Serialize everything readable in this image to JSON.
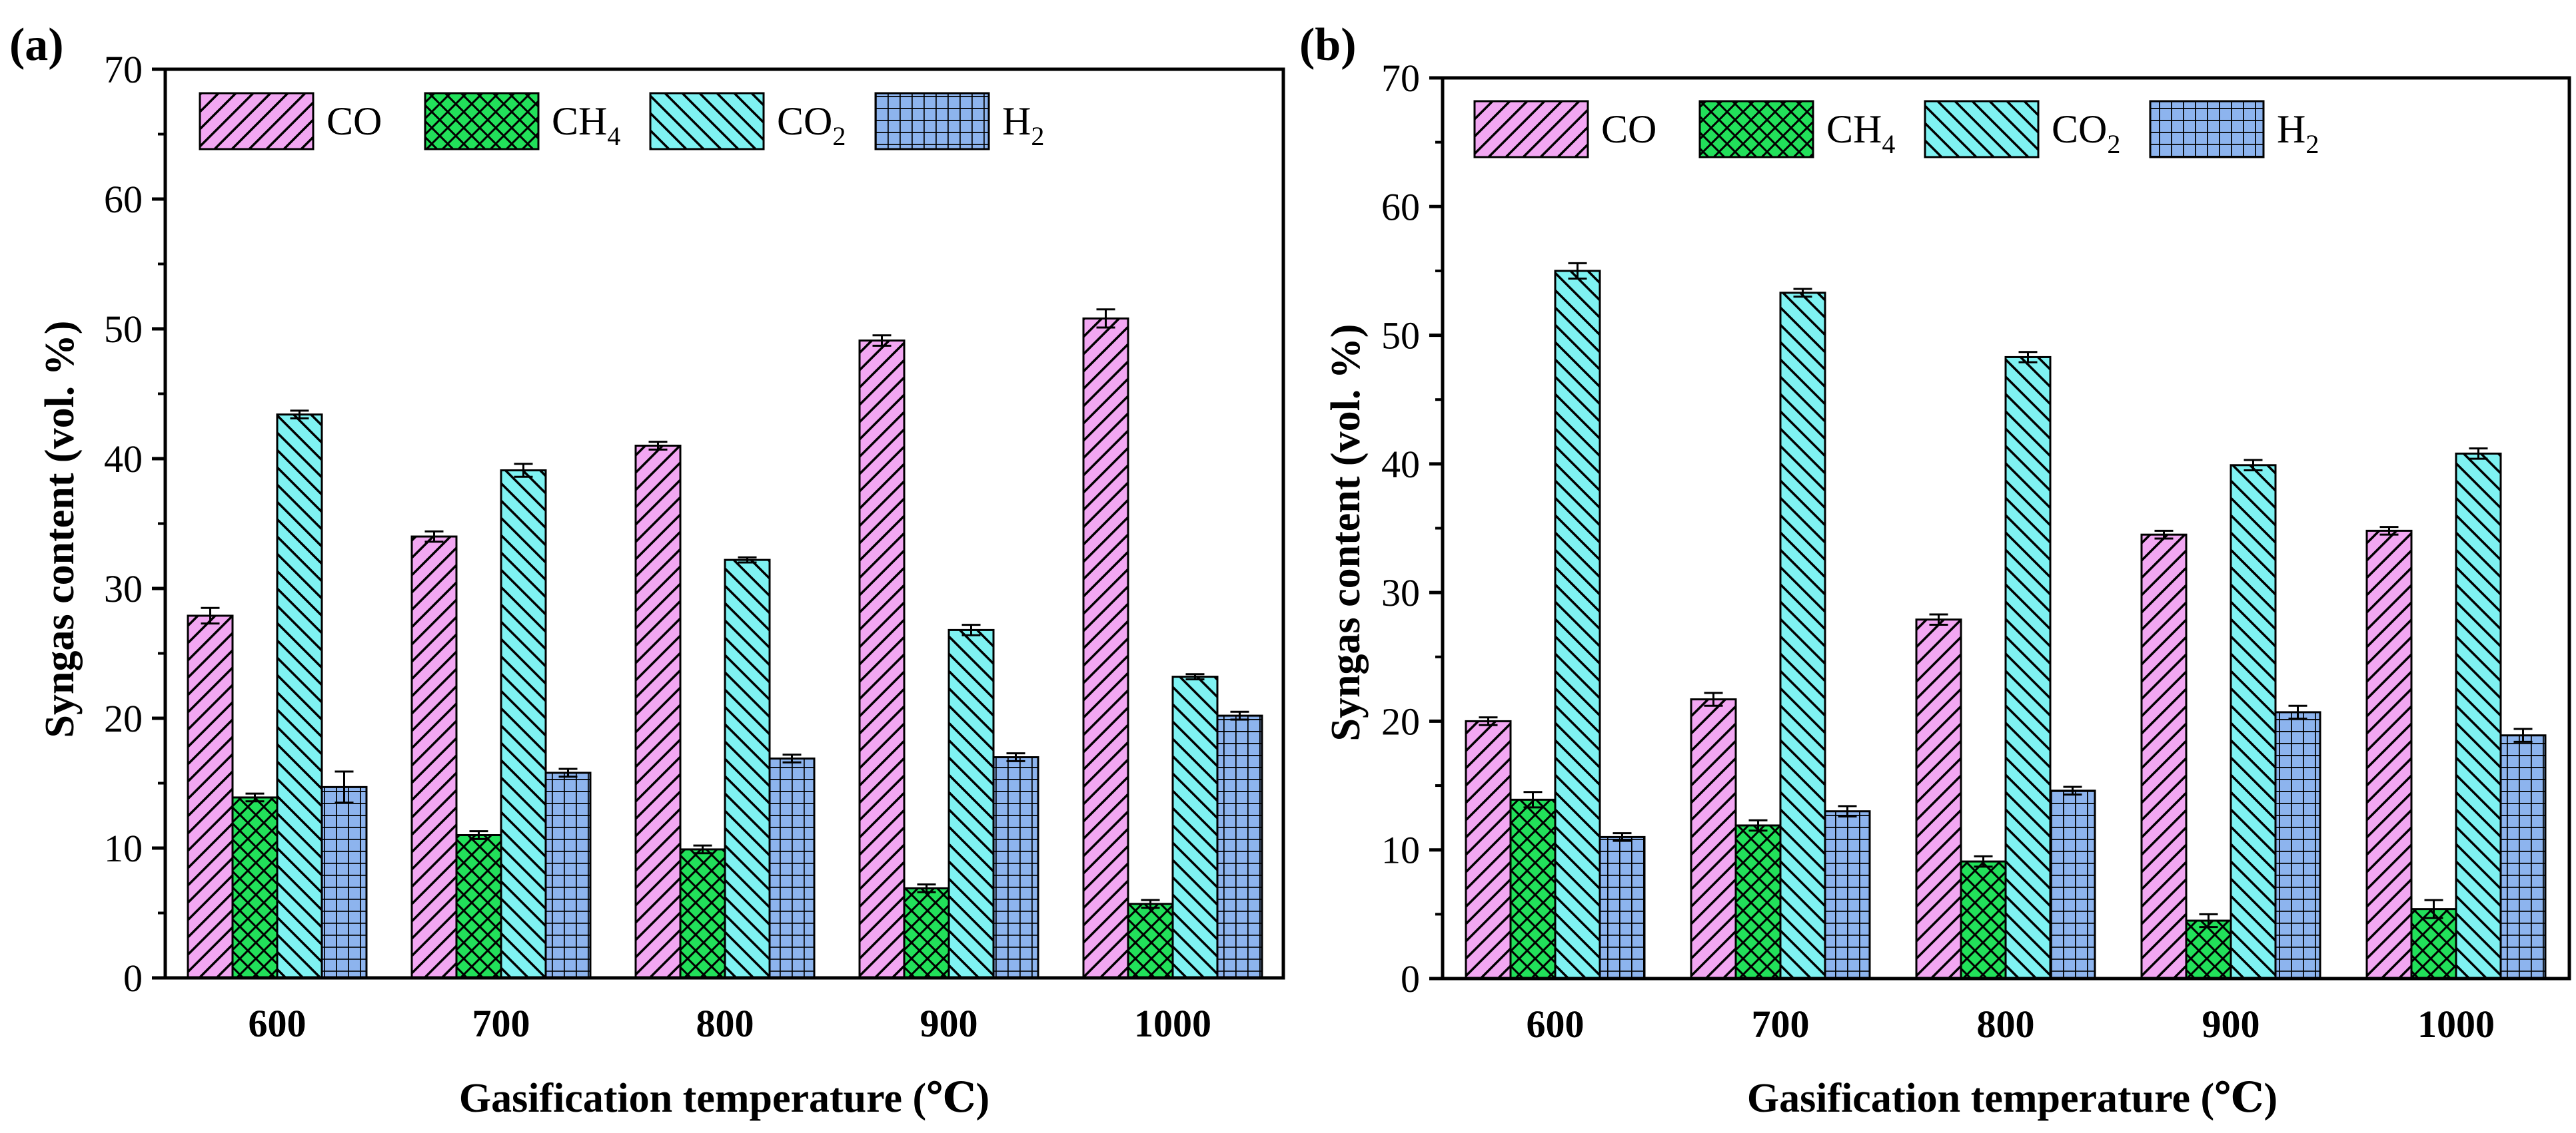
{
  "legend_colors": {
    "CO": "#F2A7F2",
    "CH4": "#22E05A",
    "CO2": "#7FF2F2",
    "H2": "#8DB4EE"
  },
  "chart_data": [
    {
      "panel_label": "(a)",
      "type": "bar",
      "categories": [
        "600",
        "700",
        "800",
        "900",
        "1000"
      ],
      "xlabel": "Gasification temperature (℃)",
      "ylabel": "Syngas content (vol. %)",
      "ylim": [
        0,
        70
      ],
      "yticks": [
        "0",
        "10",
        "20",
        "30",
        "40",
        "50",
        "60",
        "70"
      ],
      "legend_position": "top-left",
      "series": [
        {
          "name": "CO",
          "sub": "",
          "key": "CO",
          "values": [
            27.9,
            34.0,
            41.0,
            49.1,
            50.8
          ],
          "errors": [
            0.6,
            0.4,
            0.3,
            0.4,
            0.7
          ]
        },
        {
          "name": "CH",
          "sub": "4",
          "key": "CH4",
          "values": [
            13.9,
            11.0,
            9.9,
            6.9,
            5.7
          ],
          "errors": [
            0.3,
            0.3,
            0.3,
            0.3,
            0.3
          ]
        },
        {
          "name": "CO",
          "sub": "2",
          "key": "CO2",
          "values": [
            43.4,
            39.1,
            32.2,
            26.8,
            23.2
          ],
          "errors": [
            0.3,
            0.5,
            0.2,
            0.4,
            0.2
          ]
        },
        {
          "name": "H",
          "sub": "2",
          "key": "H2",
          "values": [
            14.7,
            15.8,
            16.9,
            17.0,
            20.2
          ],
          "errors": [
            1.2,
            0.3,
            0.3,
            0.3,
            0.3
          ]
        }
      ]
    },
    {
      "panel_label": "(b)",
      "type": "bar",
      "categories": [
        "600",
        "700",
        "800",
        "900",
        "1000"
      ],
      "xlabel": "Gasification temperature (℃)",
      "ylabel": "Syngas content (vol. %)",
      "ylim": [
        0,
        70
      ],
      "yticks": [
        "0",
        "10",
        "20",
        "30",
        "40",
        "50",
        "60",
        "70"
      ],
      "legend_position": "top-left",
      "series": [
        {
          "name": "CO",
          "sub": "",
          "key": "CO",
          "values": [
            20.0,
            21.7,
            27.9,
            34.5,
            34.8
          ],
          "errors": [
            0.3,
            0.5,
            0.4,
            0.3,
            0.3
          ]
        },
        {
          "name": "CH",
          "sub": "4",
          "key": "CH4",
          "values": [
            13.9,
            11.9,
            9.1,
            4.5,
            5.4
          ],
          "errors": [
            0.6,
            0.4,
            0.4,
            0.5,
            0.7
          ]
        },
        {
          "name": "CO",
          "sub": "2",
          "key": "CO2",
          "values": [
            55.0,
            53.3,
            48.3,
            39.9,
            40.8
          ],
          "errors": [
            0.6,
            0.3,
            0.4,
            0.4,
            0.4
          ]
        },
        {
          "name": "H",
          "sub": "2",
          "key": "H2",
          "values": [
            11.0,
            13.0,
            14.6,
            20.7,
            18.9
          ],
          "errors": [
            0.3,
            0.4,
            0.3,
            0.5,
            0.5
          ]
        }
      ]
    }
  ]
}
